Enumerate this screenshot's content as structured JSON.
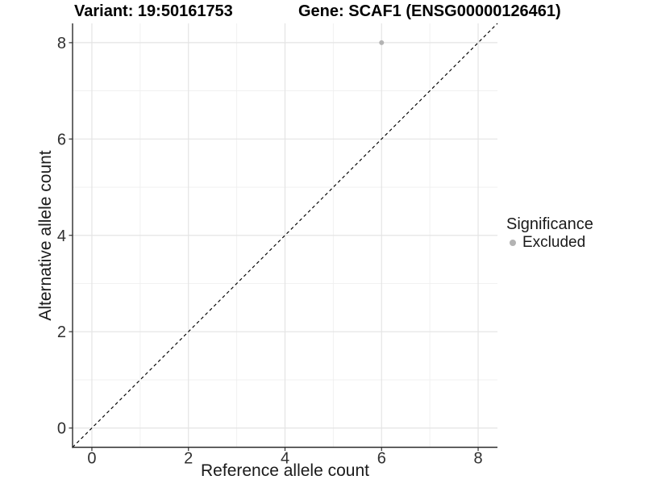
{
  "chart_data": {
    "type": "scatter",
    "title_left": "Variant: 19:50161753",
    "title_right": "Gene: SCAF1 (ENSG00000126461)",
    "xlabel": "Reference allele count",
    "ylabel": "Alternative allele count",
    "xlim": [
      -0.4,
      8.4
    ],
    "ylim": [
      -0.4,
      8.4
    ],
    "xticks": [
      0,
      2,
      4,
      6,
      8
    ],
    "yticks": [
      0,
      2,
      4,
      6,
      8
    ],
    "x_minor_ticks": [
      1,
      3,
      5,
      7
    ],
    "y_minor_ticks": [
      1,
      3,
      5,
      7
    ],
    "grid": "major and minor gridlines, light gray on white panel",
    "points": [
      {
        "x": 6,
        "y": 8,
        "significance": "Excluded"
      }
    ],
    "reference_line": {
      "type": "identity",
      "style": "dashed",
      "from": [
        -0.4,
        -0.4
      ],
      "to": [
        8.4,
        8.4
      ]
    },
    "legend": {
      "title": "Significance",
      "position": "right",
      "entries": [
        {
          "label": "Excluded",
          "marker": "circle",
          "color": "#b3b3b3"
        }
      ]
    }
  },
  "colors": {
    "background": "#ffffff",
    "grid_major": "#e4e4e4",
    "grid_minor": "#efefef",
    "axis_line": "#2b2b2b",
    "tick_mark": "#333333",
    "point": "#b3b3b3",
    "reference_line": "#000000"
  }
}
